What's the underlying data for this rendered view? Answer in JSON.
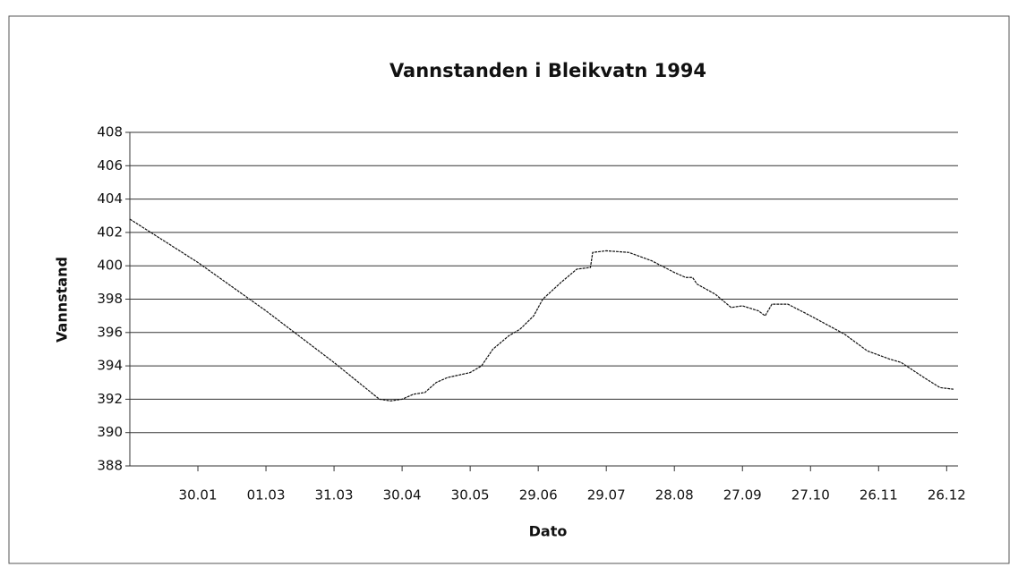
{
  "chart_data": {
    "type": "line",
    "title": "Vannstanden i Bleikvatn 1994",
    "xlabel": "Dato",
    "ylabel": "Vannstand",
    "x": [
      0,
      15,
      30,
      60,
      90,
      110,
      115,
      120,
      125,
      130,
      135,
      140,
      150,
      155,
      160,
      167,
      172,
      178,
      182,
      190,
      197,
      203,
      204,
      210,
      220,
      230,
      240,
      245,
      248,
      250,
      258,
      265,
      270,
      277,
      280,
      283,
      290,
      300,
      315,
      325,
      335,
      340,
      350,
      357,
      363
    ],
    "series": [
      {
        "name": "Vannstand",
        "color": "#111111",
        "values": [
          402.8,
          401.5,
          400.2,
          397.3,
          394.2,
          392.0,
          391.9,
          392.0,
          392.3,
          392.4,
          393.0,
          393.3,
          393.6,
          394.0,
          395.0,
          395.8,
          396.2,
          397.0,
          398.0,
          399.0,
          399.8,
          399.9,
          400.8,
          400.9,
          400.8,
          400.3,
          399.6,
          399.3,
          399.3,
          398.9,
          398.3,
          397.5,
          397.6,
          397.3,
          397.0,
          397.7,
          397.7,
          397.0,
          395.9,
          394.9,
          394.4,
          394.2,
          393.3,
          392.7,
          392.6
        ]
      }
    ],
    "xlim": [
      0,
      365
    ],
    "xticks": [
      {
        "value": 30,
        "label": "30.01"
      },
      {
        "value": 60,
        "label": "01.03"
      },
      {
        "value": 90,
        "label": "31.03"
      },
      {
        "value": 120,
        "label": "30.04"
      },
      {
        "value": 150,
        "label": "30.05"
      },
      {
        "value": 180,
        "label": "29.06"
      },
      {
        "value": 210,
        "label": "29.07"
      },
      {
        "value": 240,
        "label": "28.08"
      },
      {
        "value": 270,
        "label": "27.09"
      },
      {
        "value": 300,
        "label": "27.10"
      },
      {
        "value": 330,
        "label": "26.11"
      },
      {
        "value": 360,
        "label": "26.12"
      }
    ],
    "ylim": [
      388,
      408
    ],
    "yticks": [
      388,
      390,
      392,
      394,
      396,
      398,
      400,
      402,
      404,
      406,
      408
    ],
    "grid": true
  }
}
